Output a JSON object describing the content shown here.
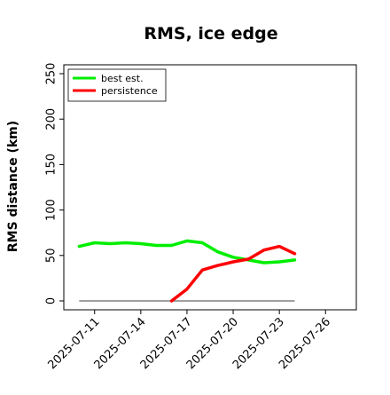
{
  "chart_data": {
    "type": "line",
    "title": "RMS, ice edge",
    "ylabel": "RMS distance (km)",
    "xlabel": "",
    "ylim": [
      0,
      250
    ],
    "y_ticks": [
      0,
      50,
      100,
      150,
      200,
      250
    ],
    "xlim": [
      "2025-07-09",
      "2025-07-28"
    ],
    "x_ticks": [
      "2025-07-11",
      "2025-07-14",
      "2025-07-17",
      "2025-07-20",
      "2025-07-23",
      "2025-07-26"
    ],
    "grid": false,
    "legend": {
      "position": "top-left",
      "entries": [
        "best est.",
        "persistence"
      ]
    },
    "series": [
      {
        "name": "best est.",
        "color": "#00ee00",
        "x": [
          "2025-07-10",
          "2025-07-11",
          "2025-07-12",
          "2025-07-13",
          "2025-07-14",
          "2025-07-15",
          "2025-07-16",
          "2025-07-17",
          "2025-07-18",
          "2025-07-19",
          "2025-07-20",
          "2025-07-21",
          "2025-07-22",
          "2025-07-23",
          "2025-07-24"
        ],
        "values": [
          60,
          64,
          63,
          64,
          63,
          61,
          61,
          66,
          64,
          54,
          48,
          45,
          42,
          43,
          45
        ]
      },
      {
        "name": "persistence",
        "color": "#ff0000",
        "x": [
          "2025-07-16",
          "2025-07-17",
          "2025-07-18",
          "2025-07-19",
          "2025-07-20",
          "2025-07-21",
          "2025-07-22",
          "2025-07-23",
          "2025-07-24"
        ],
        "values": [
          0,
          13,
          34,
          39,
          43,
          46,
          56,
          60,
          52
        ]
      }
    ],
    "reference_line": {
      "color": "#808080",
      "y": 0,
      "x": [
        "2025-07-10",
        "2025-07-24"
      ]
    }
  }
}
